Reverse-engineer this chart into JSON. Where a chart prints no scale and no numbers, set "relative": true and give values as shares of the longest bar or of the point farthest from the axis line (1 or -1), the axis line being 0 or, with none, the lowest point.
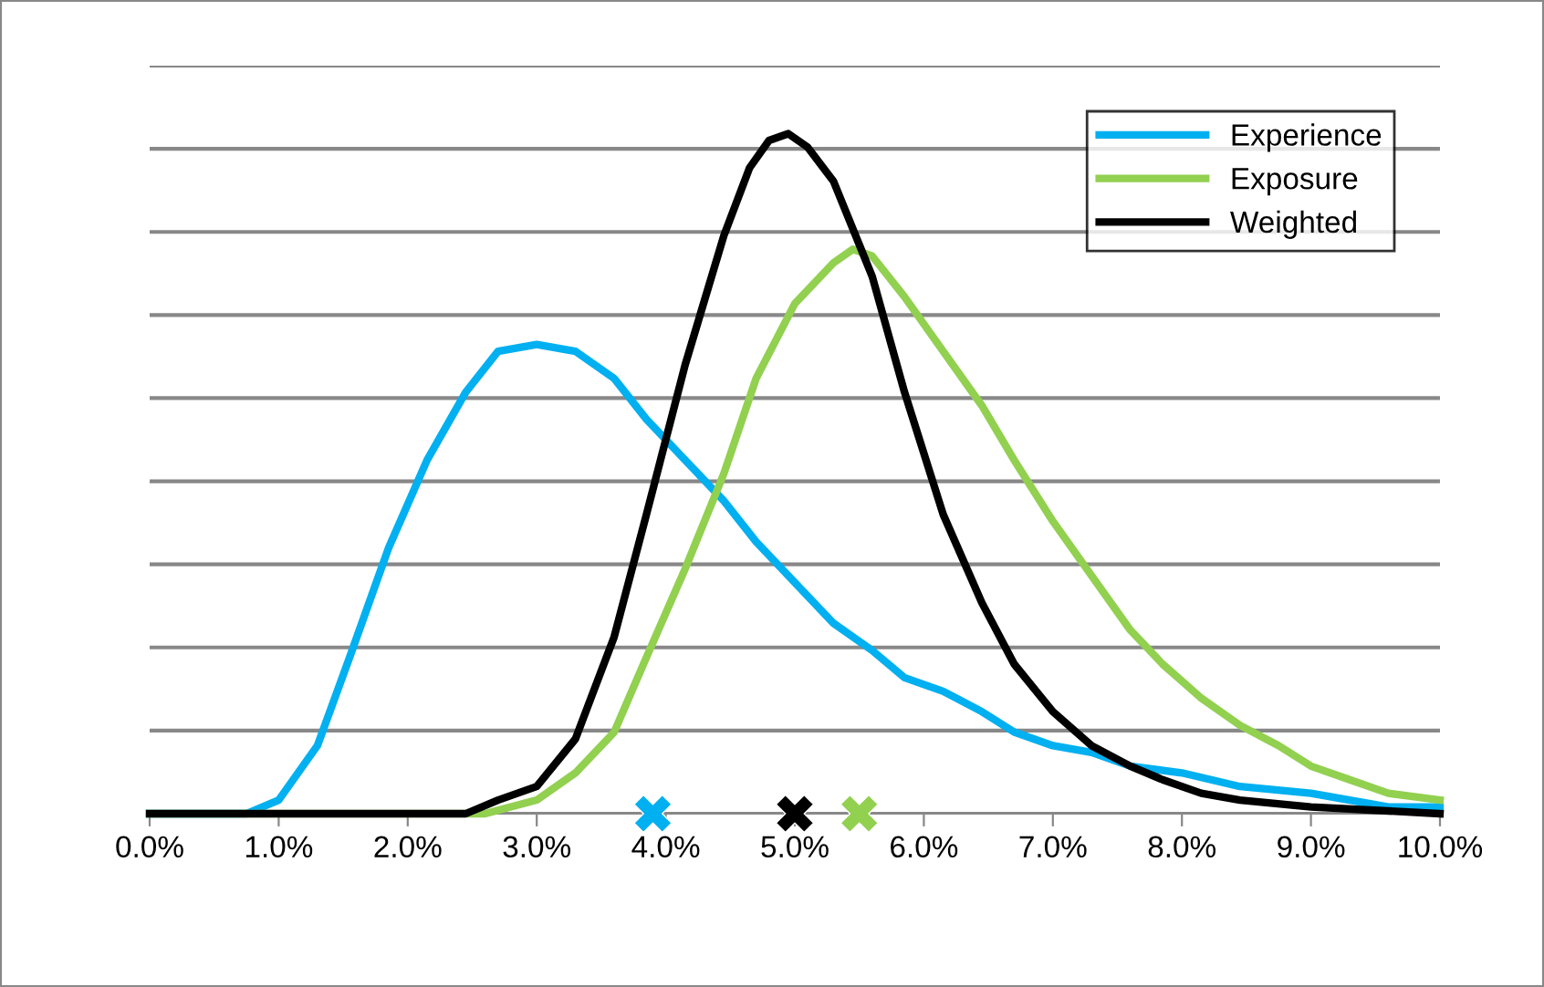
{
  "chart_data": {
    "type": "line",
    "relative": true,
    "xlim": [
      0,
      10
    ],
    "xticks": [
      {
        "value": 0,
        "label": "0.0%"
      },
      {
        "value": 1,
        "label": "1.0%"
      },
      {
        "value": 2,
        "label": "2.0%"
      },
      {
        "value": 3,
        "label": "3.0%"
      },
      {
        "value": 4,
        "label": "4.0%"
      },
      {
        "value": 5,
        "label": "5.0%"
      },
      {
        "value": 6,
        "label": "6.0%"
      },
      {
        "value": 7,
        "label": "7.0%"
      },
      {
        "value": 8,
        "label": "8.0%"
      },
      {
        "value": 9,
        "label": "9.0%"
      },
      {
        "value": 10,
        "label": "10.0%"
      }
    ],
    "grid": "y",
    "legend": "top right",
    "tick_labels": "x",
    "series": [
      {
        "name": "Experience",
        "color": "#00b0f0",
        "marker": "none",
        "x": [
          0,
          0.5,
          0.75,
          1.0,
          1.3,
          1.55,
          1.85,
          2.15,
          2.45,
          2.7,
          3.0,
          3.3,
          3.6,
          3.85,
          4.15,
          4.45,
          4.7,
          5.0,
          5.3,
          5.6,
          5.85,
          6.15,
          6.45,
          6.7,
          7.0,
          7.3,
          7.6,
          8.0,
          8.45,
          9.0,
          9.6,
          10.0
        ],
        "values": [
          0,
          0,
          0,
          0.02,
          0.1,
          0.23,
          0.39,
          0.52,
          0.62,
          0.68,
          0.69,
          0.68,
          0.64,
          0.58,
          0.52,
          0.46,
          0.4,
          0.34,
          0.28,
          0.24,
          0.2,
          0.18,
          0.15,
          0.12,
          0.1,
          0.09,
          0.07,
          0.06,
          0.04,
          0.03,
          0.01,
          0.01
        ]
      },
      {
        "name": "Exposure",
        "color": "#92d050",
        "marker": "none",
        "x": [
          0,
          2.6,
          3.0,
          3.3,
          3.6,
          3.85,
          4.15,
          4.45,
          4.7,
          5.0,
          5.3,
          5.45,
          5.6,
          5.85,
          6.15,
          6.45,
          6.7,
          7.0,
          7.3,
          7.6,
          7.85,
          8.15,
          8.45,
          8.75,
          9.0,
          9.3,
          9.6,
          10.0
        ],
        "values": [
          0,
          0,
          0.02,
          0.06,
          0.12,
          0.23,
          0.36,
          0.5,
          0.64,
          0.75,
          0.81,
          0.83,
          0.82,
          0.76,
          0.68,
          0.6,
          0.52,
          0.43,
          0.35,
          0.27,
          0.22,
          0.17,
          0.13,
          0.1,
          0.07,
          0.05,
          0.03,
          0.02
        ]
      },
      {
        "name": "Weighted",
        "color": "#000000",
        "marker": "none",
        "x": [
          0,
          2.45,
          2.7,
          3.0,
          3.3,
          3.6,
          3.85,
          4.15,
          4.45,
          4.65,
          4.8,
          4.95,
          5.1,
          5.3,
          5.6,
          5.85,
          6.15,
          6.45,
          6.7,
          7.0,
          7.3,
          7.6,
          7.85,
          8.15,
          8.45,
          9.0,
          10.0
        ],
        "values": [
          0,
          0,
          0.02,
          0.04,
          0.11,
          0.26,
          0.44,
          0.66,
          0.85,
          0.95,
          0.99,
          1.0,
          0.98,
          0.93,
          0.79,
          0.62,
          0.44,
          0.31,
          0.22,
          0.15,
          0.1,
          0.07,
          0.05,
          0.03,
          0.02,
          0.01,
          0
        ]
      },
      {
        "type": "scatter",
        "color": "#00b0f0",
        "marker": "cross",
        "x": [
          3.9
        ],
        "values": [
          0
        ]
      },
      {
        "type": "scatter",
        "color": "#000000",
        "marker": "cross",
        "x": [
          5.0
        ],
        "values": [
          0
        ]
      },
      {
        "type": "scatter",
        "color": "#92d050",
        "marker": "cross",
        "x": [
          5.5
        ],
        "values": [
          0
        ]
      }
    ]
  }
}
